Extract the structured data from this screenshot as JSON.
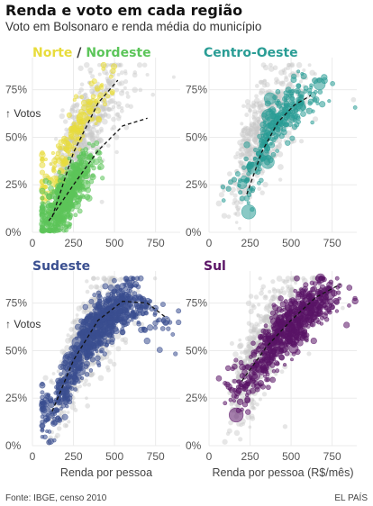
{
  "header": {
    "title": "Renda e voto em cada região",
    "subtitle": "Voto em Bolsonaro e renda média do município"
  },
  "footer": {
    "source": "Fonte: IBGE, censo 2010",
    "brand": "EL PAÍS"
  },
  "colors": {
    "background_points": "#c8c8c8",
    "norte": "#e8dc3c",
    "nordeste": "#5cc55a",
    "centro_oeste": "#2a9d95",
    "sudeste": "#3a4f90",
    "sul": "#5a1466",
    "trend": "#111111",
    "grid": "#ebebeb"
  },
  "chart_data": [
    {
      "type": "scatter",
      "panel": "norte-nordeste",
      "title_parts": [
        "Norte",
        " / ",
        "Nordeste"
      ],
      "ylabel": "",
      "xlabel": "",
      "xlim": [
        0,
        900
      ],
      "ylim": [
        0,
        0.9
      ],
      "xticks": [
        0,
        250,
        500,
        750
      ],
      "yticks": [
        "0%",
        "25%",
        "50%",
        "75%"
      ],
      "series": [
        {
          "name": "Norte",
          "center_x": 250,
          "spread_x": 110,
          "trend": [
            [
              150,
              0.3
            ],
            [
              300,
              0.6
            ],
            [
              500,
              0.82
            ]
          ],
          "points": 170
        },
        {
          "name": "Nordeste",
          "center_x": 200,
          "spread_x": 80,
          "trend": [
            [
              110,
              0.07
            ],
            [
              300,
              0.3
            ],
            [
              550,
              0.57
            ],
            [
              700,
              0.6
            ]
          ],
          "points": 560
        }
      ],
      "trend_lines": [
        [
          [
            120,
            0.08
          ],
          [
            250,
            0.42
          ],
          [
            400,
            0.68
          ],
          [
            520,
            0.8
          ]
        ],
        [
          [
            100,
            0.06
          ],
          [
            250,
            0.25
          ],
          [
            400,
            0.43
          ],
          [
            550,
            0.56
          ],
          [
            700,
            0.6
          ]
        ]
      ]
    },
    {
      "type": "scatter",
      "panel": "centro-oeste",
      "title_parts": [
        "Centro-Oeste"
      ],
      "xlim": [
        0,
        900
      ],
      "ylim": [
        0,
        0.9
      ],
      "xticks": [
        0,
        250,
        500,
        750
      ],
      "yticks": [
        "0%",
        "25%",
        "50%",
        "75%"
      ],
      "series": [
        {
          "name": "Centro-Oeste",
          "center_x": 420,
          "spread_x": 120,
          "trend": [
            [
              230,
              0.25
            ],
            [
              400,
              0.58
            ],
            [
              600,
              0.72
            ]
          ],
          "points": 300
        }
      ],
      "trend_lines": [
        [
          [
            230,
            0.2
          ],
          [
            320,
            0.42
          ],
          [
            420,
            0.58
          ],
          [
            520,
            0.67
          ],
          [
            620,
            0.72
          ]
        ]
      ]
    },
    {
      "type": "scatter",
      "panel": "sudeste",
      "title_parts": [
        "Sudeste"
      ],
      "ylabel": "↑ Votos",
      "xlabel": "Renda por pessoa",
      "xlim": [
        0,
        900
      ],
      "ylim": [
        0,
        0.9
      ],
      "xticks": [
        0,
        250,
        500,
        750
      ],
      "yticks": [
        "0%",
        "25%",
        "50%",
        "75%"
      ],
      "series": [
        {
          "name": "Sudeste",
          "center_x": 390,
          "spread_x": 170,
          "trend": [
            [
              120,
              0.17
            ],
            [
              350,
              0.6
            ],
            [
              600,
              0.77
            ],
            [
              900,
              0.62
            ]
          ],
          "points": 900
        }
      ],
      "trend_lines": [
        [
          [
            120,
            0.18
          ],
          [
            250,
            0.45
          ],
          [
            400,
            0.66
          ],
          [
            550,
            0.76
          ],
          [
            700,
            0.75
          ],
          [
            820,
            0.67
          ]
        ]
      ]
    },
    {
      "type": "scatter",
      "panel": "sul",
      "title_parts": [
        "Sul"
      ],
      "xlabel": "Renda por pessoa (R$/mês)",
      "xlim": [
        0,
        900
      ],
      "ylim": [
        0,
        0.9
      ],
      "xticks": [
        0,
        250,
        500,
        750
      ],
      "yticks": [
        "0%",
        "25%",
        "50%",
        "75%"
      ],
      "series": [
        {
          "name": "Sul",
          "center_x": 480,
          "spread_x": 150,
          "trend": [
            [
              200,
              0.3
            ],
            [
              400,
              0.55
            ],
            [
              700,
              0.78
            ]
          ],
          "points": 700
        }
      ],
      "trend_lines": [
        [
          [
            200,
            0.34
          ],
          [
            350,
            0.52
          ],
          [
            500,
            0.66
          ],
          [
            650,
            0.78
          ],
          [
            800,
            0.85
          ]
        ]
      ]
    }
  ]
}
